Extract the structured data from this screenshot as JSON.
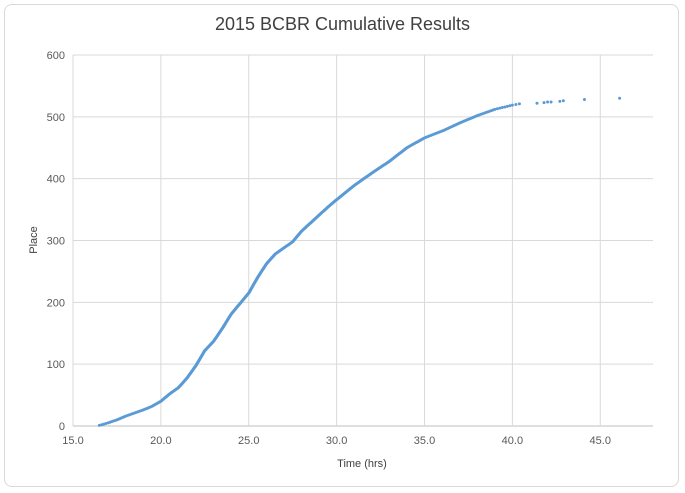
{
  "chart_data": {
    "type": "scatter",
    "title": "2015 BCBR Cumulative Results",
    "xlabel": "Time (hrs)",
    "ylabel": "Place",
    "xlim": [
      15.0,
      48.0
    ],
    "ylim": [
      0,
      600
    ],
    "x_ticks": [
      "15.0",
      "20.0",
      "25.0",
      "30.0",
      "35.0",
      "40.0",
      "45.0"
    ],
    "y_ticks": [
      "0",
      "100",
      "200",
      "300",
      "400",
      "500",
      "600"
    ],
    "grid": true,
    "marker_color": "#5b9bd5",
    "curve": [
      [
        16.5,
        1
      ],
      [
        17.0,
        5
      ],
      [
        17.5,
        10
      ],
      [
        18.0,
        16
      ],
      [
        18.5,
        21
      ],
      [
        19.0,
        26
      ],
      [
        19.5,
        32
      ],
      [
        20.0,
        40
      ],
      [
        20.5,
        52
      ],
      [
        21.0,
        62
      ],
      [
        21.5,
        78
      ],
      [
        22.0,
        98
      ],
      [
        22.5,
        122
      ],
      [
        23.0,
        137
      ],
      [
        23.5,
        158
      ],
      [
        24.0,
        181
      ],
      [
        24.5,
        198
      ],
      [
        25.0,
        215
      ],
      [
        25.5,
        240
      ],
      [
        26.0,
        262
      ],
      [
        26.5,
        278
      ],
      [
        27.0,
        288
      ],
      [
        27.5,
        298
      ],
      [
        28.0,
        315
      ],
      [
        28.5,
        328
      ],
      [
        29.0,
        341
      ],
      [
        29.5,
        354
      ],
      [
        30.0,
        366
      ],
      [
        31.0,
        389
      ],
      [
        32.0,
        409
      ],
      [
        33.0,
        428
      ],
      [
        34.0,
        450
      ],
      [
        35.0,
        466
      ],
      [
        36.0,
        477
      ],
      [
        37.0,
        490
      ],
      [
        38.0,
        502
      ],
      [
        39.0,
        512
      ],
      [
        40.0,
        519
      ],
      [
        40.4,
        521
      ]
    ],
    "outliers": [
      [
        41.4,
        522
      ],
      [
        41.8,
        523
      ],
      [
        42.0,
        524
      ],
      [
        42.2,
        524
      ],
      [
        42.7,
        525
      ],
      [
        42.9,
        526
      ],
      [
        44.1,
        528
      ],
      [
        46.1,
        530
      ]
    ]
  }
}
